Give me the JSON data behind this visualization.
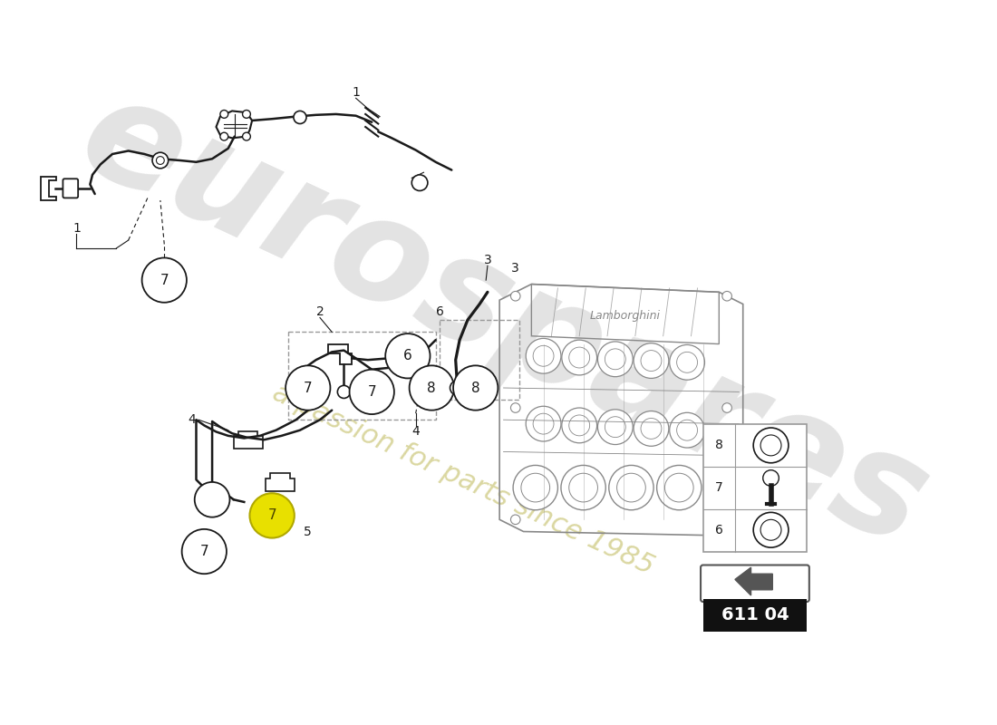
{
  "bg_color": "#ffffff",
  "dc": "#1a1a1a",
  "gray": "#666666",
  "light_gray": "#999999",
  "part_number": "611 04",
  "watermark1": "eurospares",
  "watermark2": "a passion for parts since 1985",
  "wm_color": "#cccccc",
  "wm_color2": "#d4d090",
  "engine_color": "#888888",
  "label7_yellow_fill": "#e8e000",
  "label7_yellow_border": "#b0a800"
}
